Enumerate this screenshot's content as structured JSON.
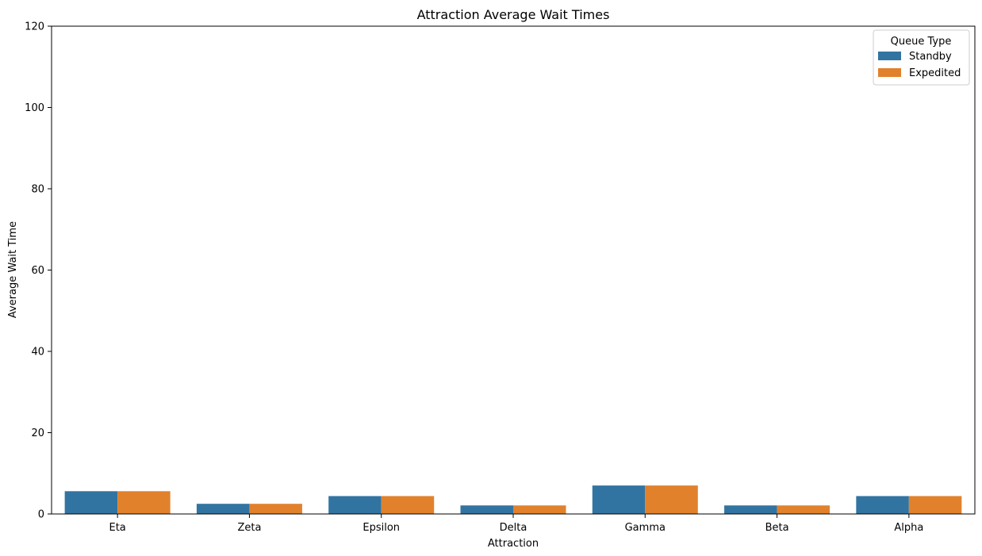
{
  "chart_data": {
    "type": "bar",
    "title": "Attraction Average Wait Times",
    "xlabel": "Attraction",
    "ylabel": "Average Wait Time",
    "ylim": [
      0,
      120
    ],
    "yticks": [
      0,
      20,
      40,
      60,
      80,
      100,
      120
    ],
    "grid": false,
    "legend": {
      "title": "Queue Type",
      "placement": "top-right"
    },
    "categories": [
      "Eta",
      "Zeta",
      "Epsilon",
      "Delta",
      "Gamma",
      "Beta",
      "Alpha"
    ],
    "series": [
      {
        "name": "Standby",
        "color": "#3274a1",
        "values": [
          5.6,
          2.5,
          4.4,
          2.1,
          7.0,
          2.1,
          4.4
        ]
      },
      {
        "name": "Expedited",
        "color": "#e1812c",
        "values": [
          5.6,
          2.5,
          4.4,
          2.1,
          7.0,
          2.1,
          4.4
        ]
      }
    ]
  }
}
